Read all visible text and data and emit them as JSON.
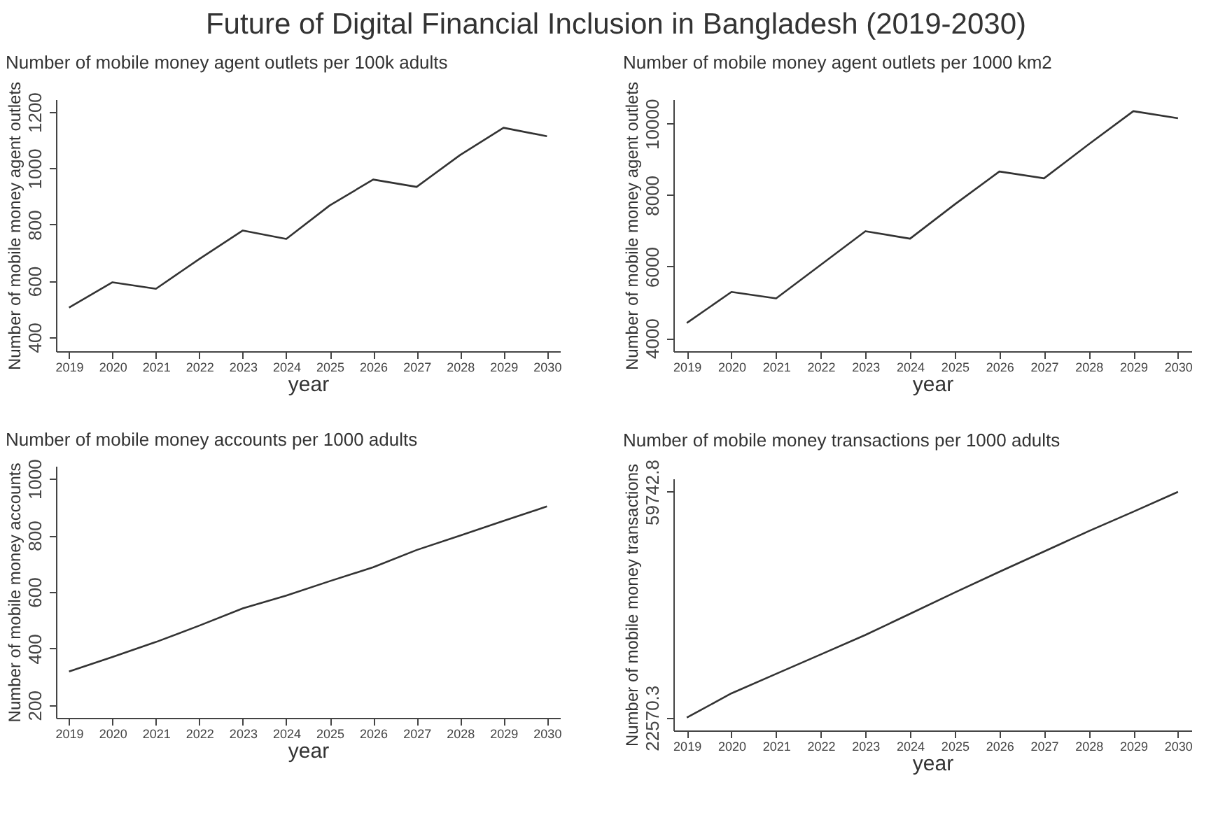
{
  "chart_data": [
    {
      "type": "line",
      "annotations": [
        "Future of Digital Financial Inclusion in Bangladesh (2019-2030)"
      ],
      "title": "Number of mobile money agent outlets per 100k adults",
      "xlabel": "year",
      "ylabel": "Number of mobile money agent outlets",
      "color": "#333333",
      "grid": false,
      "categories": [
        "2019",
        "2020",
        "2021",
        "2022",
        "2023",
        "2024",
        "2025",
        "2026",
        "2027",
        "2028",
        "2029",
        "2030"
      ],
      "values": [
        505,
        595,
        572,
        678,
        779,
        749,
        868,
        960,
        934,
        1047,
        1144,
        1114
      ],
      "ylim": [
        350,
        1245
      ],
      "yticks": [
        400,
        600,
        800,
        1000,
        1200
      ]
    },
    {
      "type": "line",
      "title": "Number of mobile money agent outlets per 1000 km2",
      "xlabel": "year",
      "ylabel": "Number of mobile money agent outlets",
      "color": "#333333",
      "grid": false,
      "categories": [
        "2019",
        "2020",
        "2021",
        "2022",
        "2023",
        "2024",
        "2025",
        "2026",
        "2027",
        "2028",
        "2029",
        "2030"
      ],
      "values": [
        4420,
        5290,
        5110,
        6050,
        6990,
        6780,
        7740,
        8660,
        8470,
        9420,
        10350,
        10150
      ],
      "ylim": [
        3630,
        10680
      ],
      "yticks": [
        4000,
        6000,
        8000,
        10000
      ]
    },
    {
      "type": "line",
      "title": "Number of mobile money accounts per 1000 adults",
      "xlabel": "year",
      "ylabel": "Number of mobile money accounts",
      "color": "#333333",
      "grid": false,
      "categories": [
        "2019",
        "2020",
        "2021",
        "2022",
        "2023",
        "2024",
        "2025",
        "2026",
        "2027",
        "2028",
        "2029",
        "2030"
      ],
      "values": [
        319,
        370,
        423,
        481,
        542,
        587,
        638,
        687,
        748,
        799,
        851,
        902
      ],
      "ylim": [
        155,
        1045
      ],
      "yticks": [
        200,
        400,
        600,
        800,
        1000
      ]
    },
    {
      "type": "line",
      "title": "Number of mobile money transactions per 1000 adults",
      "xlabel": "year",
      "ylabel": "Number of mobile money transactions",
      "color": "#333333",
      "grid": false,
      "categories": [
        "2019",
        "2020",
        "2021",
        "2022",
        "2023",
        "2024",
        "2025",
        "2026",
        "2027",
        "2028",
        "2029",
        "2030"
      ],
      "values": [
        22570.3,
        26570,
        29770,
        32970,
        36180,
        39670,
        43160,
        46580,
        49920,
        53270,
        56470,
        59742.8
      ],
      "ylim": [
        20460,
        61930
      ],
      "yticks": [
        22570.3,
        59742.8
      ]
    }
  ]
}
